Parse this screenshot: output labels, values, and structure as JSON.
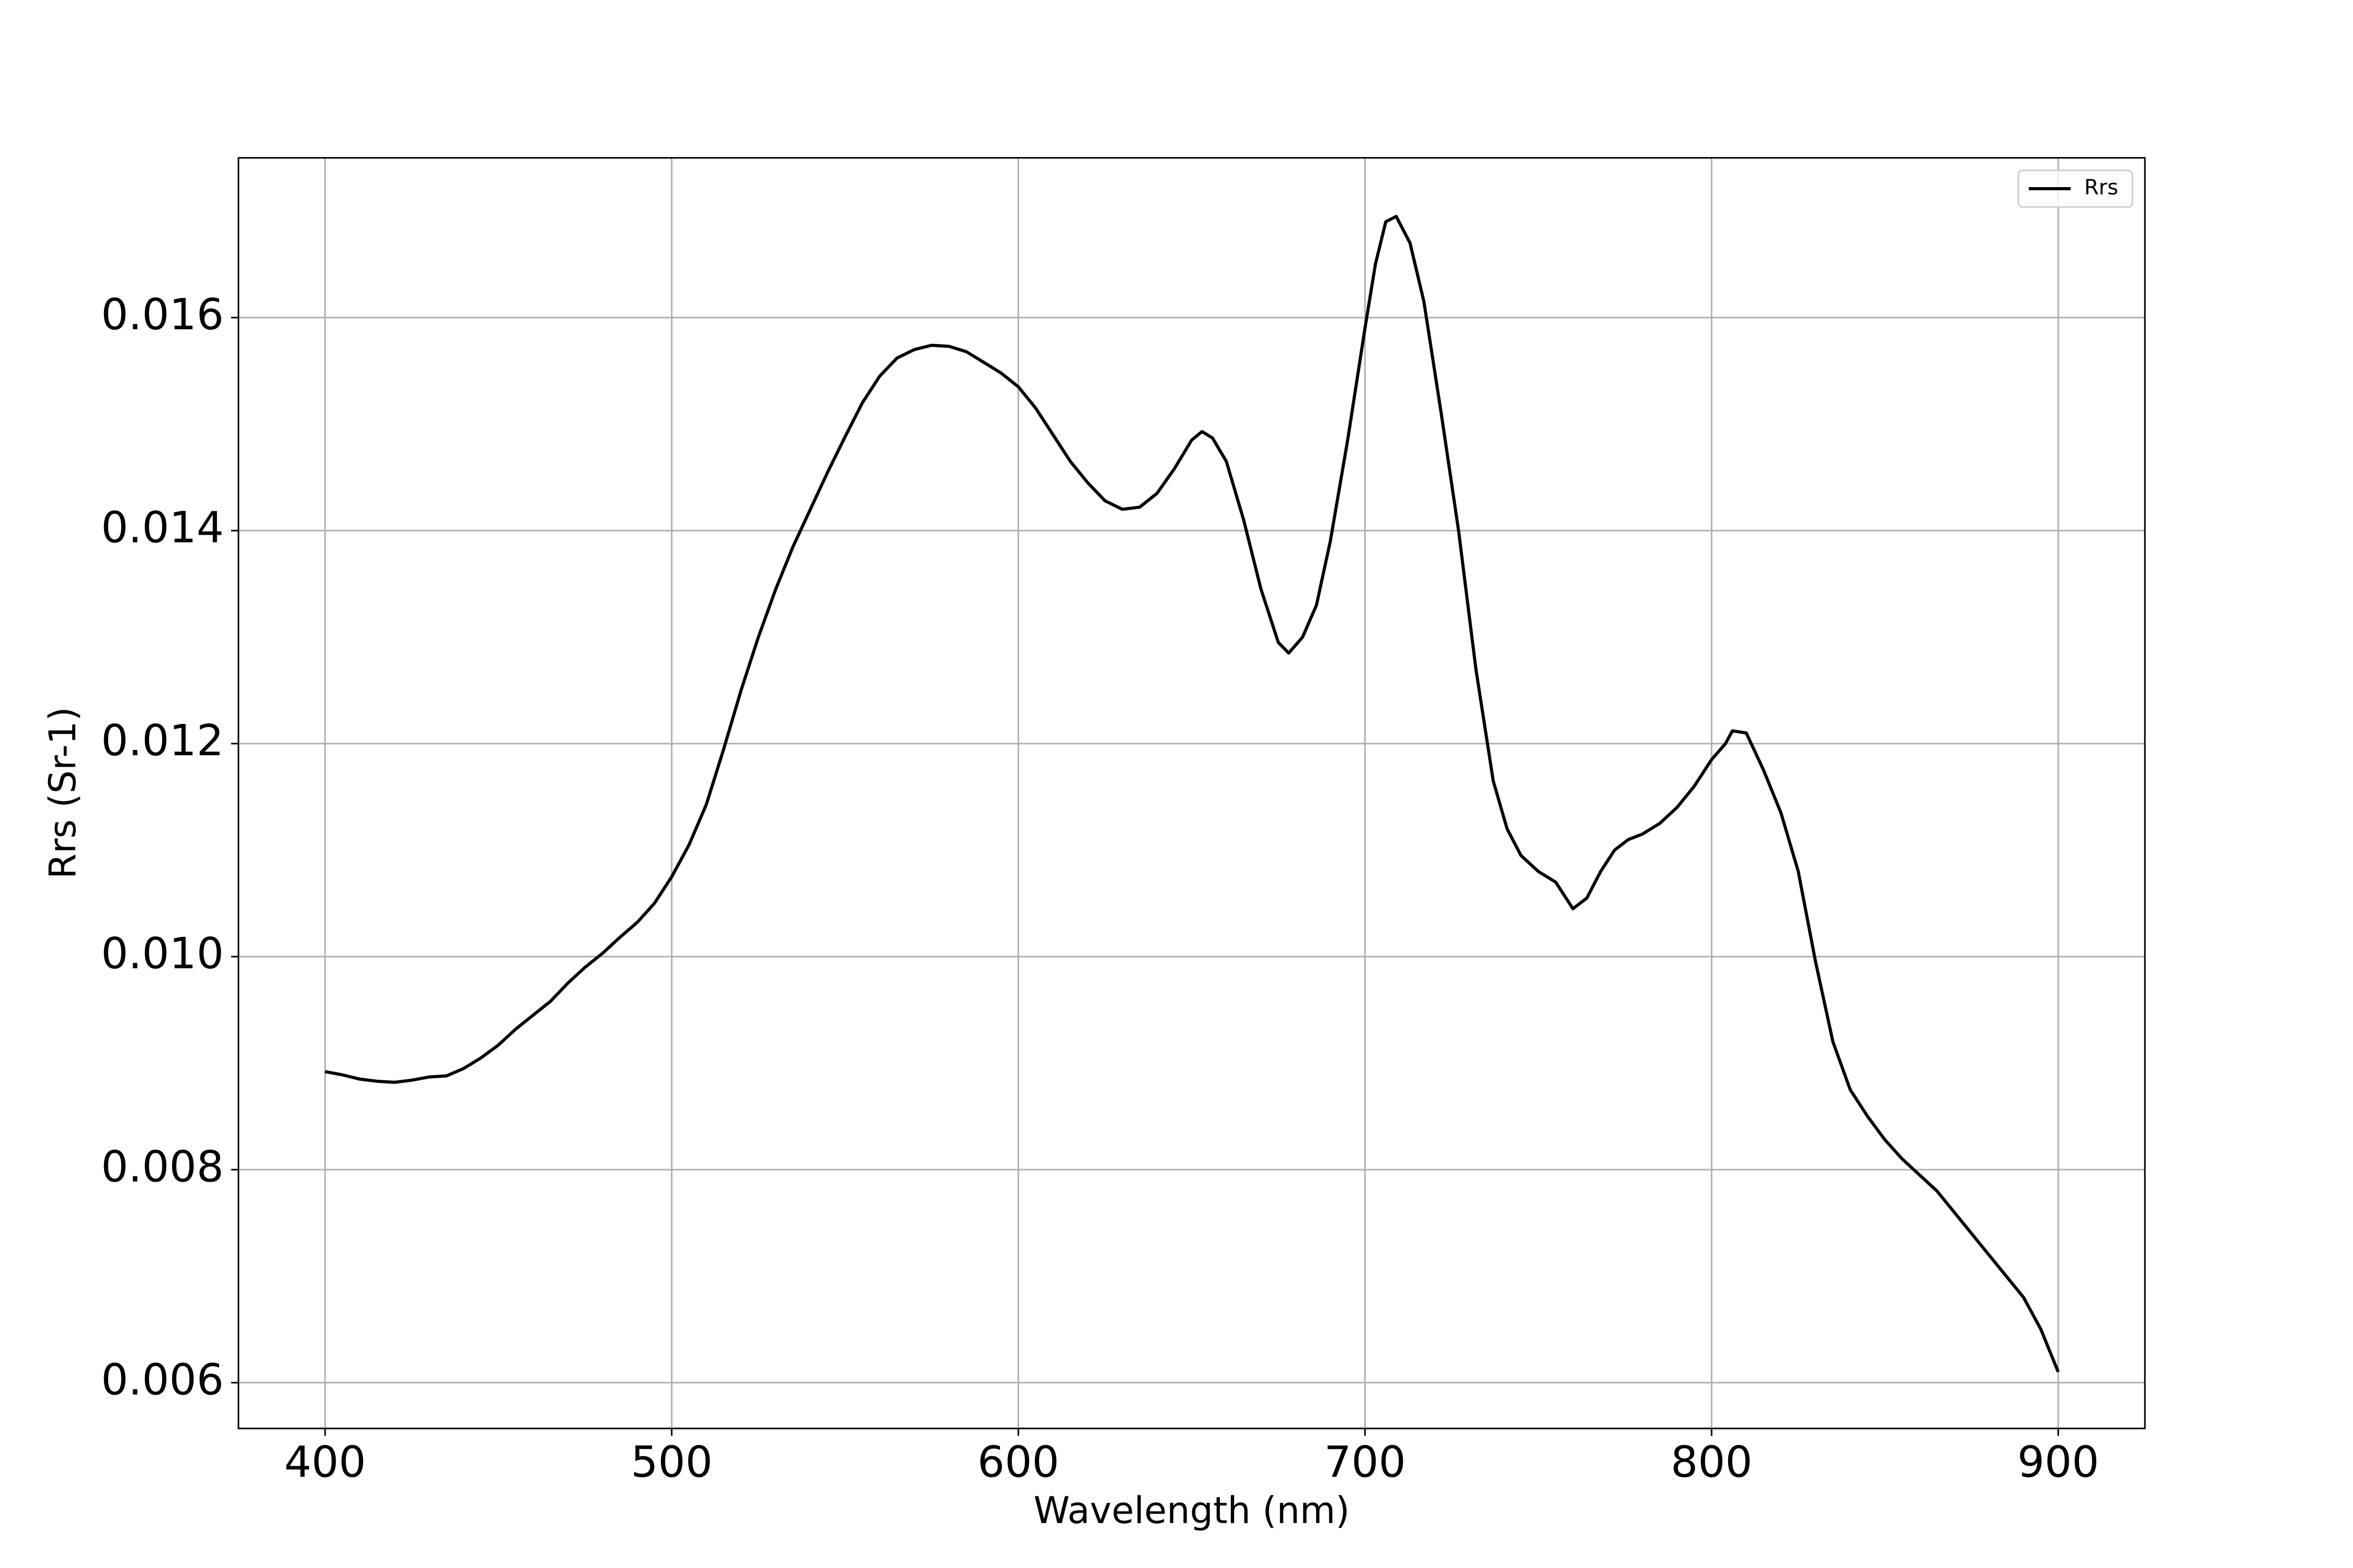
{
  "chart_data": {
    "type": "line",
    "x_label": "Wavelength (nm)",
    "y_label": "Rrs (Sr-1)",
    "x": [
      400,
      405,
      410,
      415,
      420,
      425,
      430,
      435,
      440,
      445,
      450,
      455,
      460,
      465,
      470,
      475,
      480,
      485,
      490,
      495,
      500,
      505,
      510,
      515,
      520,
      525,
      530,
      535,
      540,
      545,
      550,
      555,
      560,
      565,
      570,
      575,
      580,
      585,
      590,
      595,
      600,
      605,
      610,
      615,
      620,
      625,
      630,
      635,
      640,
      645,
      650,
      653,
      656,
      660,
      665,
      670,
      675,
      678,
      682,
      686,
      690,
      695,
      700,
      703,
      706,
      709,
      713,
      717,
      722,
      727,
      732,
      737,
      741,
      745,
      750,
      755,
      760,
      764,
      768,
      772,
      776,
      780,
      785,
      790,
      795,
      800,
      804,
      806,
      810,
      815,
      820,
      825,
      830,
      835,
      840,
      845,
      850,
      855,
      860,
      865,
      870,
      875,
      880,
      885,
      890,
      895,
      900
    ],
    "series": [
      {
        "name": "Rrs",
        "color": "#000000",
        "values": [
          0.00892,
          0.00889,
          0.00885,
          0.00883,
          0.00882,
          0.00884,
          0.00887,
          0.00888,
          0.00895,
          0.00905,
          0.00917,
          0.00932,
          0.00945,
          0.00958,
          0.00975,
          0.0099,
          0.01003,
          0.01018,
          0.01032,
          0.0105,
          0.01075,
          0.01105,
          0.01143,
          0.01195,
          0.0125,
          0.013,
          0.01345,
          0.01385,
          0.0142,
          0.01455,
          0.01488,
          0.0152,
          0.01545,
          0.01562,
          0.0157,
          0.01574,
          0.01573,
          0.01568,
          0.01558,
          0.01548,
          0.01535,
          0.01515,
          0.0149,
          0.01465,
          0.01445,
          0.01428,
          0.0142,
          0.01422,
          0.01435,
          0.01458,
          0.01485,
          0.01493,
          0.01487,
          0.01465,
          0.0141,
          0.01345,
          0.01295,
          0.01285,
          0.013,
          0.0133,
          0.0139,
          0.01485,
          0.0159,
          0.0165,
          0.0169,
          0.01695,
          0.0167,
          0.01615,
          0.0151,
          0.014,
          0.0127,
          0.01165,
          0.0112,
          0.01095,
          0.0108,
          0.0107,
          0.01045,
          0.01055,
          0.0108,
          0.011,
          0.0111,
          0.01115,
          0.01125,
          0.0114,
          0.0116,
          0.01185,
          0.012,
          0.01212,
          0.0121,
          0.01175,
          0.01135,
          0.0108,
          0.00995,
          0.0092,
          0.00875,
          0.0085,
          0.00828,
          0.0081,
          0.00795,
          0.0078,
          0.0076,
          0.0074,
          0.0072,
          0.007,
          0.0068,
          0.0065,
          0.0061
        ]
      }
    ],
    "xlim": [
      375,
      925
    ],
    "xticks": [
      400,
      500,
      600,
      700,
      800,
      900
    ],
    "ylim": [
      0.00557,
      0.0175
    ],
    "yticks": [
      0.006,
      0.008,
      {
        "value": 0.01,
        "label": "0.010"
      },
      0.012,
      0.014,
      0.016
    ],
    "grid": true,
    "legend": "upper right"
  }
}
